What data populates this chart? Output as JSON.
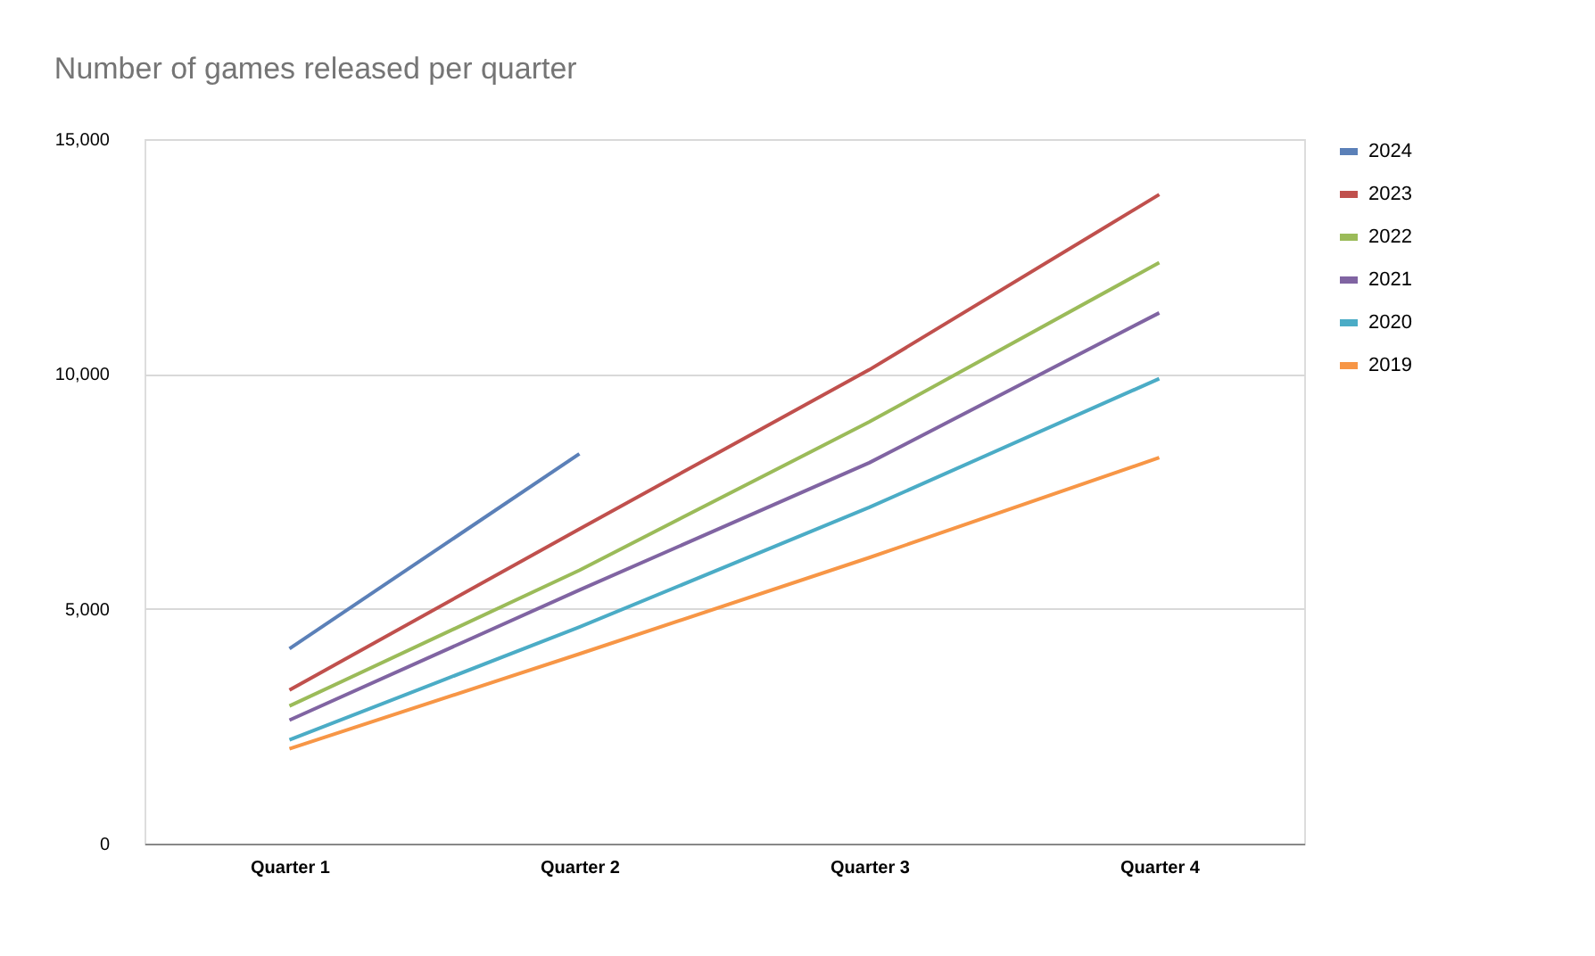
{
  "chart_data": {
    "type": "line",
    "title": "Number of games released per quarter",
    "categories": [
      "Quarter 1",
      "Quarter 2",
      "Quarter 3",
      "Quarter 4"
    ],
    "series": [
      {
        "name": "2024",
        "color": "#5b80b8",
        "values": [
          4150,
          8300,
          null,
          null
        ]
      },
      {
        "name": "2023",
        "color": "#c0504d",
        "values": [
          3270,
          6700,
          10090,
          13820
        ]
      },
      {
        "name": "2022",
        "color": "#9bbb59",
        "values": [
          2930,
          5820,
          8980,
          12370
        ]
      },
      {
        "name": "2021",
        "color": "#8064a2",
        "values": [
          2630,
          5400,
          8110,
          11300
        ]
      },
      {
        "name": "2020",
        "color": "#4bacc6",
        "values": [
          2210,
          4610,
          7160,
          9900
        ]
      },
      {
        "name": "2019",
        "color": "#f79646",
        "values": [
          2020,
          4040,
          6090,
          8220
        ]
      }
    ],
    "ylim": [
      0,
      15000
    ],
    "yticks": [
      0,
      {
        "value": 5000,
        "label": "5,000"
      },
      {
        "value": 10000,
        "label": "10,000"
      },
      {
        "value": 15000,
        "label": "15,000"
      }
    ],
    "grid": "y",
    "legend": "right",
    "line_style": "solid",
    "marker": "none"
  }
}
